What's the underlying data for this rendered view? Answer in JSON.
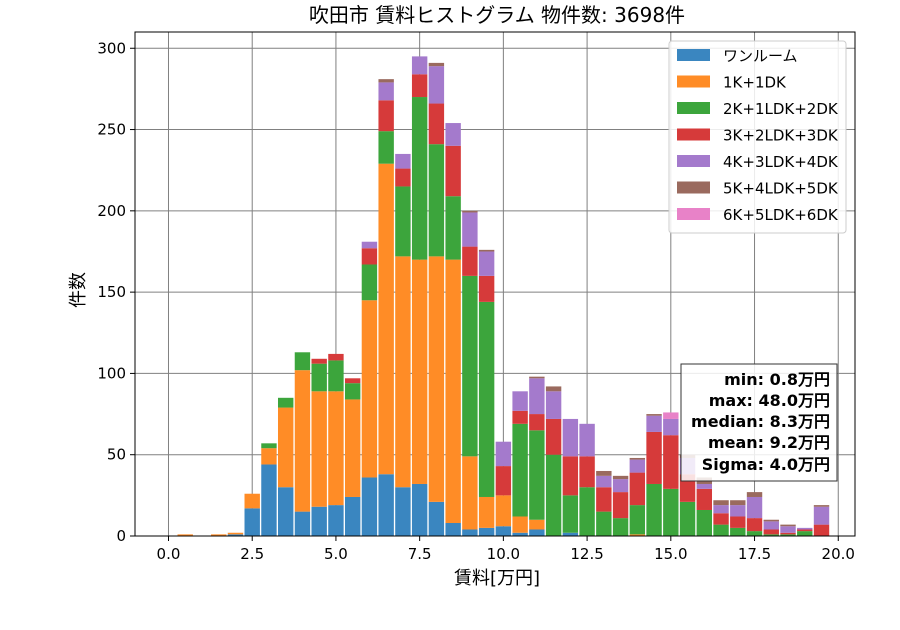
{
  "chart_data": {
    "type": "bar",
    "stacked": true,
    "title": "吹田市 賃料ヒストグラム  物件数: 3698件",
    "xlabel": "賃料[万円]",
    "ylabel": "件数",
    "xlim": [
      -1.0,
      20.5
    ],
    "ylim": [
      0,
      310
    ],
    "xticks": [
      0.0,
      2.5,
      5.0,
      7.5,
      10.0,
      12.5,
      15.0,
      17.5,
      20.0
    ],
    "xtick_labels": [
      "0.0",
      "2.5",
      "5.0",
      "7.5",
      "10.0",
      "12.5",
      "15.0",
      "17.5",
      "20.0"
    ],
    "yticks": [
      0,
      50,
      100,
      150,
      200,
      250,
      300
    ],
    "ytick_labels": [
      "0",
      "50",
      "100",
      "150",
      "200",
      "250",
      "300"
    ],
    "grid": true,
    "legend_position": "top-right",
    "bin_width": 0.5,
    "x": [
      0.5,
      1.0,
      1.5,
      2.0,
      2.5,
      3.0,
      3.5,
      4.0,
      4.5,
      5.0,
      5.5,
      6.0,
      6.5,
      7.0,
      7.5,
      8.0,
      8.5,
      9.0,
      9.5,
      10.0,
      10.5,
      11.0,
      11.5,
      12.0,
      12.5,
      13.0,
      13.5,
      14.0,
      14.5,
      15.0,
      15.5,
      16.0,
      16.5,
      17.0,
      17.5,
      18.0,
      18.5,
      19.0,
      19.5
    ],
    "series": [
      {
        "name": "ワンルーム",
        "color": "#3a86c0",
        "values": [
          0,
          0,
          0,
          1,
          17,
          44,
          30,
          15,
          18,
          19,
          24,
          36,
          38,
          30,
          32,
          21,
          8,
          4,
          5,
          6,
          2,
          4,
          0,
          2,
          0,
          0,
          0,
          0,
          0,
          0,
          0,
          0,
          0,
          0,
          0,
          0,
          0,
          0,
          0
        ]
      },
      {
        "name": "1K+1DK",
        "color": "#ff8c26",
        "values": [
          1,
          0,
          1,
          1,
          9,
          10,
          49,
          87,
          71,
          70,
          60,
          109,
          191,
          142,
          138,
          151,
          162,
          45,
          19,
          19,
          10,
          6,
          0,
          0,
          0,
          0,
          0,
          1,
          0,
          0,
          0,
          0,
          0,
          0,
          0,
          0,
          0,
          0,
          0
        ]
      },
      {
        "name": "2K+1LDK+2DK",
        "color": "#3ca53c",
        "values": [
          0,
          0,
          0,
          0,
          0,
          3,
          6,
          11,
          17,
          19,
          10,
          22,
          20,
          43,
          100,
          69,
          39,
          111,
          120,
          0,
          57,
          55,
          50,
          23,
          30,
          15,
          11,
          18,
          32,
          29,
          21,
          16,
          7,
          5,
          3,
          1,
          1,
          3,
          0
        ]
      },
      {
        "name": "3K+2LDK+3DK",
        "color": "#d63a3a",
        "values": [
          0,
          0,
          0,
          0,
          0,
          0,
          0,
          0,
          3,
          4,
          3,
          10,
          19,
          11,
          14,
          25,
          31,
          18,
          16,
          18,
          8,
          10,
          22,
          24,
          19,
          15,
          16,
          20,
          32,
          33,
          17,
          13,
          7,
          7,
          8,
          3,
          1,
          1,
          7
        ]
      },
      {
        "name": "4K+3LDK+4DK",
        "color": "#a47acc",
        "values": [
          0,
          0,
          0,
          0,
          0,
          0,
          0,
          0,
          0,
          0,
          0,
          4,
          11,
          9,
          11,
          23,
          14,
          21,
          15,
          15,
          12,
          22,
          17,
          23,
          20,
          7,
          8,
          8,
          10,
          10,
          10,
          3,
          5,
          7,
          13,
          5,
          4,
          1,
          11
        ]
      },
      {
        "name": "5K+4LDK+5DK",
        "color": "#9a6a5e",
        "values": [
          0,
          0,
          0,
          0,
          0,
          0,
          0,
          0,
          0,
          0,
          0,
          0,
          2,
          0,
          0,
          2,
          0,
          1,
          1,
          0,
          0,
          1,
          3,
          0,
          0,
          3,
          2,
          1,
          1,
          0,
          2,
          4,
          3,
          3,
          3,
          1,
          1,
          0,
          1
        ]
      },
      {
        "name": "6K+5LDK+6DK",
        "color": "#e882c8",
        "values": [
          0,
          0,
          0,
          0,
          0,
          0,
          0,
          0,
          0,
          0,
          0,
          0,
          0,
          0,
          0,
          0,
          0,
          0,
          0,
          0,
          0,
          0,
          0,
          0,
          0,
          0,
          0,
          0,
          0,
          4,
          0,
          0,
          0,
          0,
          0,
          0,
          0,
          0,
          0
        ]
      }
    ]
  },
  "stats": [
    "min: 0.8万円",
    "max: 48.0万円",
    "median: 8.3万円",
    "mean: 9.2万円",
    "Sigma: 4.0万円"
  ]
}
